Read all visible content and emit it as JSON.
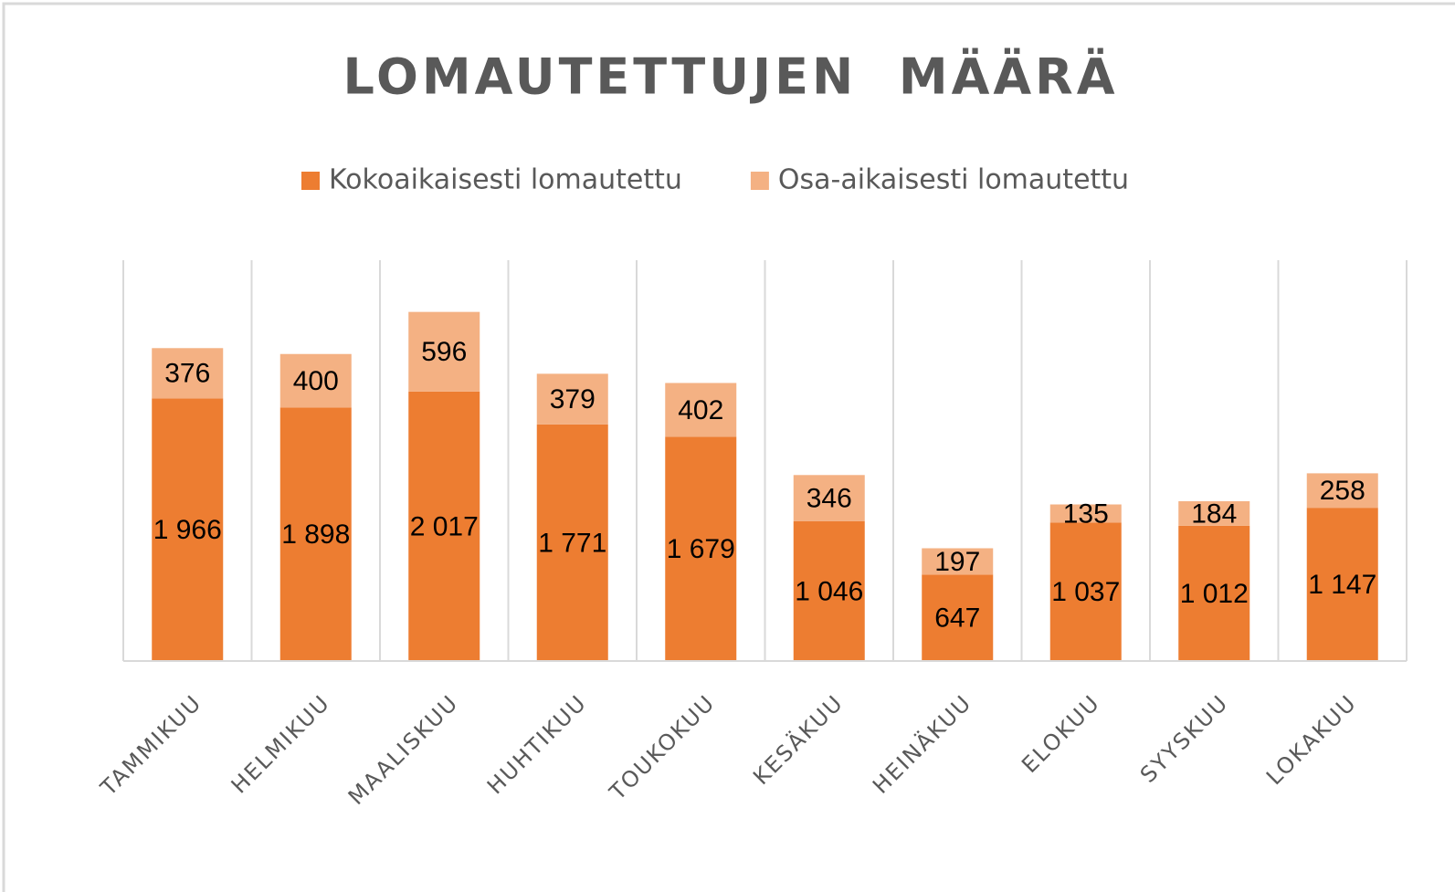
{
  "chart_data": {
    "type": "stacked_bar",
    "title": "LOMAUTETTUJEN  MÄÄRÄ",
    "categories": [
      "TAMMIKUU",
      "HELMIKUU",
      "MAALISKUU",
      "HUHTIKUU",
      "TOUKOKUU",
      "KESÄKUU",
      "HEINÄKUU",
      "ELOKUU",
      "SYYSKUU",
      "LOKAKUU"
    ],
    "series": [
      {
        "name": "Kokoaikaisesti lomautettu",
        "color": "#ed7d31",
        "values": [
          1966,
          1898,
          2017,
          1771,
          1679,
          1046,
          647,
          1037,
          1012,
          1147
        ],
        "value_labels": [
          "1 966",
          "1 898",
          "2 017",
          "1 771",
          "1 679",
          "1 046",
          "647",
          "1 037",
          "1 012",
          "1 147"
        ]
      },
      {
        "name": "Osa-aikaisesti lomautettu",
        "color": "#f4b183",
        "values": [
          376,
          400,
          596,
          379,
          402,
          346,
          197,
          135,
          184,
          258
        ]
      }
    ],
    "ylim": [
      0,
      3000
    ],
    "legend": "top"
  }
}
